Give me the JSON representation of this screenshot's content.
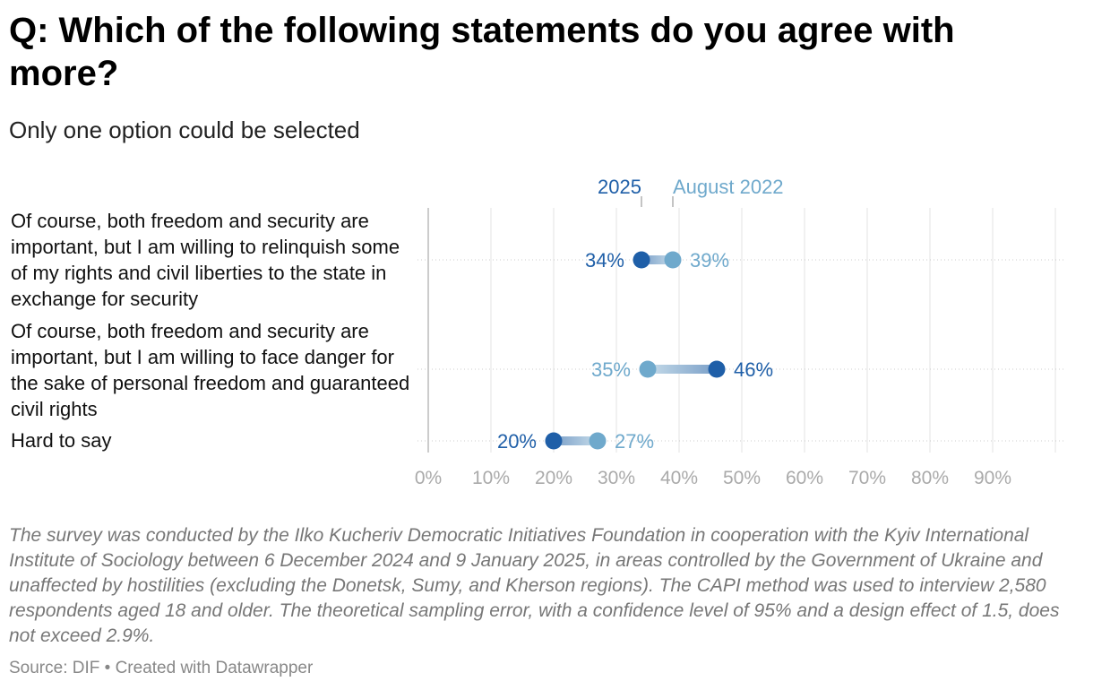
{
  "title": "Q: Which of the following statements do you agree with more?",
  "subtitle": "Only one option could be selected",
  "notes": "The survey was conducted by the Ilko Kucheriv Democratic Initiatives Foundation in cooperation with the Kyiv International Institute of Sociology between 6 December 2024 and 9 January 2025, in areas controlled by the Government of Ukraine and unaffected by hostilities (excluding the Donetsk, Sumy, and Kherson regions). The CAPI method was used to interview 2,580 respondents aged 18 and older. The theoretical sampling error, with a confidence level of 95% and a design effect of 1.5, does not exceed 2.9%.",
  "source": "Source: DIF • Created with Datawrapper",
  "colors": {
    "series_2025": "#1f5fa8",
    "series_2022": "#6fa9cc",
    "grid": "#dddddd",
    "tick": "#aaaaaa"
  },
  "chart_data": {
    "type": "range-dot",
    "title": "Q: Which of the following statements do you agree with more?",
    "subtitle": "Only one option could be selected",
    "categories": [
      "Of course, both freedom and security are important, but I am willing to relinquish some of my rights and civil liberties to the state in exchange for security",
      "Of course, both freedom and security are important, but I am willing to face danger for the sake of personal freedom and guaranteed civil rights",
      "Hard to say"
    ],
    "series": [
      {
        "name": "2025",
        "color": "#1f5fa8",
        "values": [
          34,
          46,
          20
        ]
      },
      {
        "name": "August 2022",
        "color": "#6fa9cc",
        "values": [
          39,
          35,
          27
        ]
      }
    ],
    "value_labels": {
      "2025": [
        "34%",
        "46%",
        "20%"
      ],
      "August 2022": [
        "39%",
        "35%",
        "27%"
      ]
    },
    "x_ticks": [
      "0%",
      "10%",
      "20%",
      "30%",
      "40%",
      "50%",
      "60%",
      "70%",
      "80%",
      "90%"
    ],
    "xlim": [
      0,
      100
    ],
    "legend_placement": "top, above first row",
    "grid": true
  }
}
